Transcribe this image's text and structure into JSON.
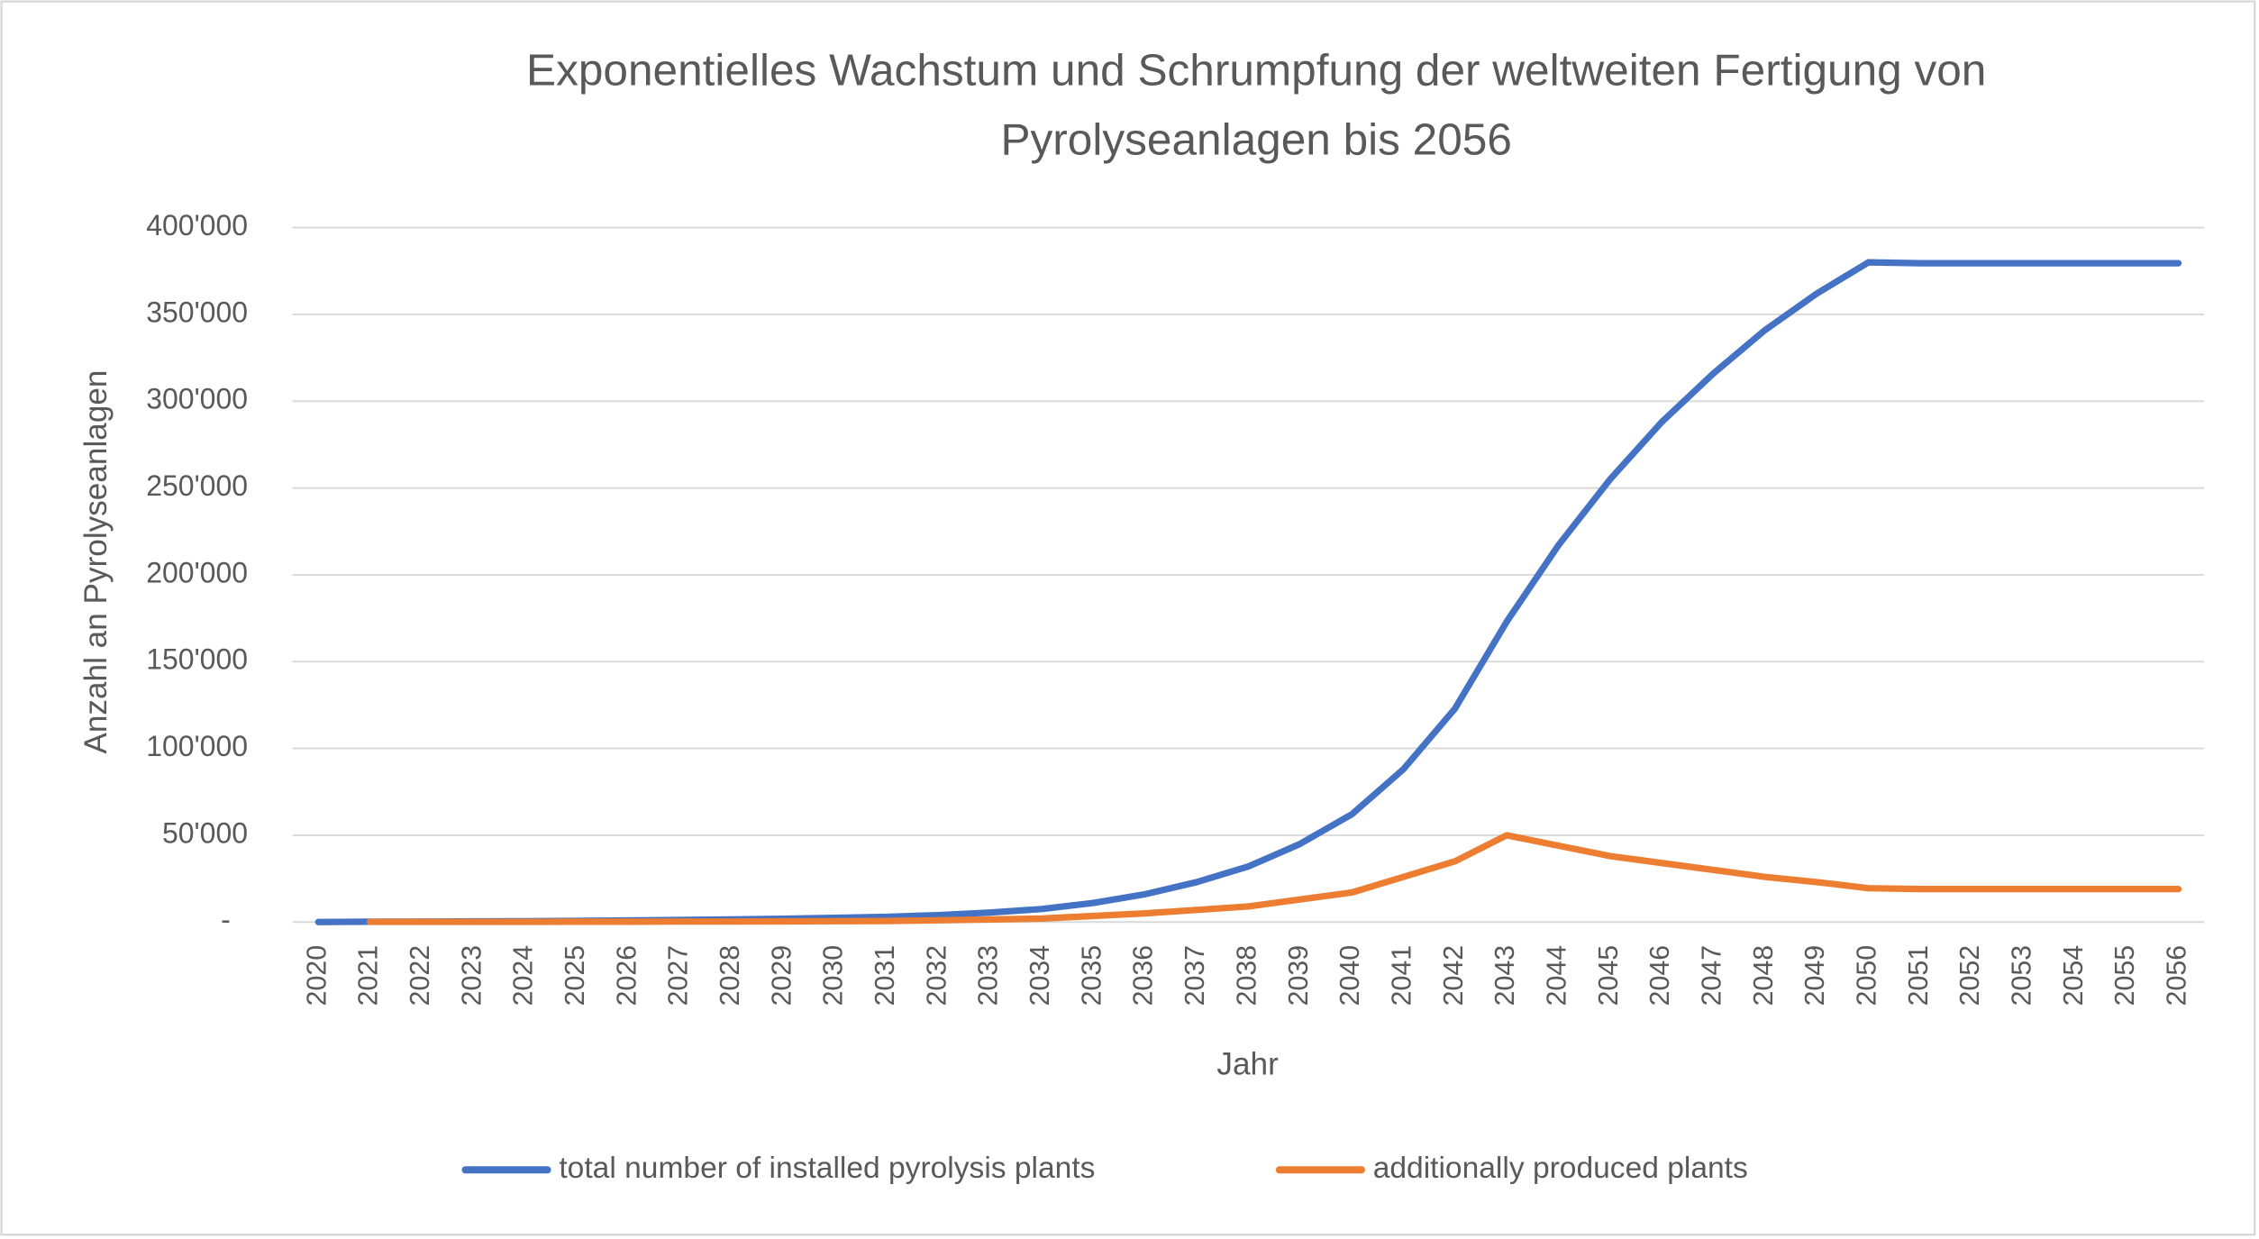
{
  "chart_data": {
    "type": "line",
    "title": "Exponentielles Wachstum und Schrumpfung der weltweiten Fertigung von Pyrolyseanlagen bis 2056",
    "x_label": "Jahr",
    "y_label": "Anzahl an Pyrolyseanlagen",
    "categories": [
      "2020",
      "2021",
      "2022",
      "2023",
      "2024",
      "2025",
      "2026",
      "2027",
      "2028",
      "2029",
      "2030",
      "2031",
      "2032",
      "2033",
      "2034",
      "2035",
      "2036",
      "2037",
      "2038",
      "2039",
      "2040",
      "2041",
      "2042",
      "2043",
      "2044",
      "2045",
      "2046",
      "2047",
      "2048",
      "2049",
      "2050",
      "2051",
      "2052",
      "2053",
      "2054",
      "2055",
      "2056"
    ],
    "series": [
      {
        "name": "total number of installed pyrolysis plants",
        "color": "#4472c4",
        "values": [
          0,
          200,
          300,
          400,
          500,
          700,
          900,
          1200,
          1500,
          1900,
          2400,
          3000,
          4000,
          5500,
          7500,
          11000,
          16000,
          23000,
          32000,
          45000,
          62000,
          88000,
          123000,
          173000,
          217000,
          255000,
          288000,
          316000,
          341000,
          362000,
          380000,
          379500,
          379500,
          379500,
          379500,
          379500,
          379500
        ]
      },
      {
        "name": "additionally produced plants",
        "color": "#ed7d31",
        "values": [
          null,
          100,
          100,
          100,
          100,
          200,
          200,
          300,
          300,
          400,
          500,
          600,
          1000,
          1500,
          2000,
          3500,
          5000,
          7000,
          9000,
          13000,
          17000,
          26000,
          35000,
          50000,
          44000,
          38000,
          34000,
          30000,
          26000,
          23000,
          19500,
          19000,
          19000,
          19000,
          19000,
          19000,
          19000
        ]
      }
    ],
    "ylim": [
      0,
      400000
    ],
    "yticks": [
      {
        "value": 0,
        "label": "-"
      },
      {
        "value": 50000,
        "label": "50'000"
      },
      {
        "value": 100000,
        "label": "100'000"
      },
      {
        "value": 150000,
        "label": "150'000"
      },
      {
        "value": 200000,
        "label": "200'000"
      },
      {
        "value": 250000,
        "label": "250'000"
      },
      {
        "value": 300000,
        "label": "300'000"
      },
      {
        "value": 350000,
        "label": "350'000"
      },
      {
        "value": 400000,
        "label": "400'000"
      }
    ],
    "grid": true,
    "legend": "bottom"
  }
}
